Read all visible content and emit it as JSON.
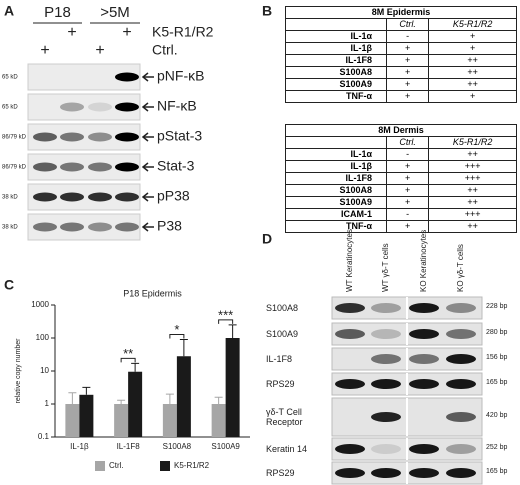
{
  "panel_a": {
    "label": "A",
    "groups": [
      "P18",
      ">5M"
    ],
    "treatments": [
      {
        "name": "K5-R1/R2",
        "marks": [
          "+",
          "+"
        ]
      },
      {
        "name": "Ctrl.",
        "marks": [
          "+",
          "+"
        ]
      }
    ],
    "blots": [
      {
        "kd": "65 kD",
        "name": "pNF-κB"
      },
      {
        "kd": "65 kD",
        "name": "NF-κB"
      },
      {
        "kd": "86/79 kD",
        "name": "pStat-3"
      },
      {
        "kd": "86/79 kD",
        "name": "Stat-3"
      },
      {
        "kd": "38 kD",
        "name": "pP38"
      },
      {
        "kd": "38 kD",
        "name": "P38"
      }
    ]
  },
  "panel_b": {
    "label": "B",
    "tables": [
      {
        "title": "8M Epidermis",
        "columns": [
          "Ctrl.",
          "K5-R1/R2"
        ],
        "rows": [
          [
            "IL-1α",
            "-",
            "+"
          ],
          [
            "IL-1β",
            "+",
            "+"
          ],
          [
            "IL-1F8",
            "+",
            "++"
          ],
          [
            "S100A8",
            "+",
            "++"
          ],
          [
            "S100A9",
            "+",
            "++"
          ],
          [
            "TNF-α",
            "+",
            "+"
          ]
        ]
      },
      {
        "title": "8M Dermis",
        "columns": [
          "Ctrl.",
          "K5-R1/R2"
        ],
        "rows": [
          [
            "IL-1α",
            "-",
            "++"
          ],
          [
            "IL-1β",
            "+",
            "+++"
          ],
          [
            "IL-1F8",
            "+",
            "+++"
          ],
          [
            "S100A8",
            "+",
            "++"
          ],
          [
            "S100A9",
            "+",
            "++"
          ],
          [
            "ICAM-1",
            "-",
            "+++"
          ],
          [
            "TNF-α",
            "+",
            "++"
          ]
        ]
      }
    ]
  },
  "chart_data": {
    "type": "bar",
    "panel_label": "C",
    "title": "P18 Epidermis",
    "y_label": "relative copy number",
    "categories": [
      "IL-1β",
      "IL-1F8",
      "S100A8",
      "S100A9"
    ],
    "series": [
      {
        "name": "Ctrl.",
        "color": "#a6a6a6",
        "values": [
          1,
          1,
          1,
          1
        ],
        "errors": [
          1.2,
          0.3,
          1,
          0.6
        ]
      },
      {
        "name": "K5-R1/R2",
        "color": "#1a1a1a",
        "values": [
          1.9,
          9.5,
          28,
          100
        ],
        "errors": [
          1.3,
          7.5,
          62,
          150
        ]
      }
    ],
    "significance": [
      null,
      "**",
      "*",
      "***"
    ],
    "ylim": [
      0.1,
      1000
    ],
    "yticks": [
      0.1,
      1,
      10,
      100,
      1000
    ],
    "log_scale": true,
    "legend": "bottom"
  },
  "panel_d": {
    "label": "D",
    "columns": [
      "WT Keratinocytes",
      "WT γδ-T cells",
      "KO Keratinocytes",
      "KO γδ-T cells"
    ],
    "rows": [
      {
        "name": "S100A8",
        "size": "228 bp"
      },
      {
        "name": "S100A9",
        "size": "280 bp"
      },
      {
        "name": "IL-1F8",
        "size": "156 bp"
      },
      {
        "name": "RPS29",
        "size": "165 bp"
      },
      {
        "name": "γδ-T Cell Receptor",
        "size": "420 bp"
      },
      {
        "name": "Keratin 14",
        "size": "252 bp"
      },
      {
        "name": "RPS29",
        "size": "165 bp"
      }
    ]
  }
}
